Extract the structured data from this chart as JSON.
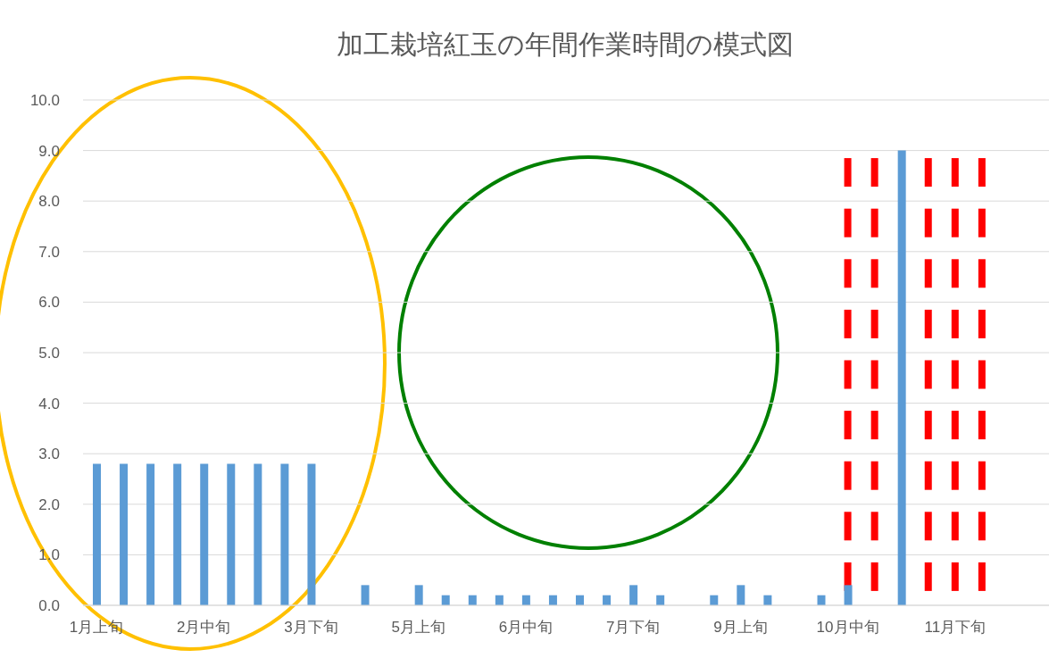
{
  "chart_data": {
    "type": "bar",
    "title": "加工栽培紅玉の年間作業時間の模式図",
    "categories": [
      "1月上旬",
      null,
      null,
      null,
      "2月中旬",
      null,
      null,
      null,
      "3月下旬",
      null,
      null,
      null,
      "5月上旬",
      null,
      null,
      null,
      "6月中旬",
      null,
      null,
      null,
      "7月下旬",
      null,
      null,
      null,
      "9月上旬",
      null,
      null,
      null,
      "10月中旬",
      null,
      null,
      null,
      "11月下旬",
      null,
      null,
      null
    ],
    "values": [
      2.8,
      2.8,
      2.8,
      2.8,
      2.8,
      2.8,
      2.8,
      2.8,
      2.8,
      0,
      0.4,
      0,
      0.4,
      0.2,
      0.2,
      0.2,
      0.2,
      0.2,
      0.2,
      0.2,
      0.4,
      0.2,
      0,
      0.2,
      0.4,
      0.2,
      0,
      0.2,
      0.4,
      0,
      9.0,
      0,
      0,
      0,
      0,
      0
    ],
    "color": "#5b9bd5",
    "ylim": [
      0,
      10
    ],
    "yticks": [
      {
        "value": 0,
        "label": "0.0"
      },
      {
        "value": 1,
        "label": "1.0"
      },
      {
        "value": 2,
        "label": "2.0"
      },
      {
        "value": 3,
        "label": "3.0"
      },
      {
        "value": 4,
        "label": "4.0"
      },
      {
        "value": 5,
        "label": "5.0"
      },
      {
        "value": 6,
        "label": "6.0"
      },
      {
        "value": 7,
        "label": "7.0"
      },
      {
        "value": 8,
        "label": "8.0"
      },
      {
        "value": 9,
        "label": "9.0"
      },
      {
        "value": 10,
        "label": "10.0"
      }
    ],
    "grid": "y"
  }
}
